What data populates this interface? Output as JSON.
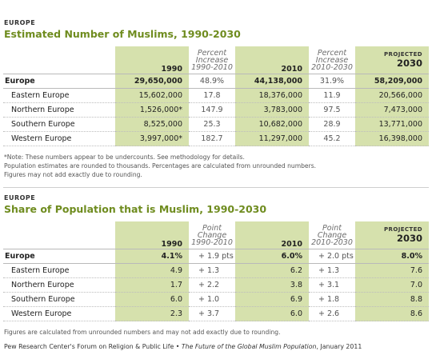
{
  "table1": {
    "label": "EUROPE",
    "title": "Estimated Number of Muslims, 1990-2030",
    "headers": {
      "y1": "1990",
      "c1a": "Percent Increase",
      "c1b": "1990-2010",
      "y2": "2010",
      "c2a": "Percent Increase",
      "c2b": "2010-2030",
      "projected": "PROJECTED",
      "y3": "2030"
    },
    "rows": [
      {
        "region": "Europe",
        "v1990": "29,650,000",
        "p1": "48.9%",
        "v2010": "44,138,000",
        "p2": "31.9%",
        "v2030": "58,209,000"
      },
      {
        "region": "Eastern Europe",
        "v1990": "15,602,000",
        "p1": "17.8",
        "v2010": "18,376,000",
        "p2": "11.9",
        "v2030": "20,566,000"
      },
      {
        "region": "Northern Europe",
        "v1990": "1,526,000*",
        "p1": "147.9",
        "v2010": "3,783,000",
        "p2": "97.5",
        "v2030": "7,473,000"
      },
      {
        "region": "Southern Europe",
        "v1990": "8,525,000",
        "p1": "25.3",
        "v2010": "10,682,000",
        "p2": "28.9",
        "v2030": "13,771,000"
      },
      {
        "region": "Western Europe",
        "v1990": "3,997,000*",
        "p1": "182.7",
        "v2010": "11,297,000",
        "p2": "45.2",
        "v2030": "16,398,000"
      }
    ],
    "notes": [
      "*Note: These numbers appear to be undercounts. See methodology for details.",
      "Population estimates are rounded to thousands. Percentages are calculated from unrounded numbers.",
      "Figures may not add exactly due to rounding."
    ]
  },
  "table2": {
    "label": "EUROPE",
    "title": "Share of Population that is Muslim, 1990-2030",
    "headers": {
      "y1": "1990",
      "c1a": "Point Change",
      "c1b": "1990-2010",
      "y2": "2010",
      "c2a": "Point Change",
      "c2b": "2010-2030",
      "projected": "PROJECTED",
      "y3": "2030"
    },
    "rows": [
      {
        "region": "Europe",
        "v1990": "4.1%",
        "p1": "+ 1.9 pts",
        "v2010": "6.0%",
        "p2": "+ 2.0 pts",
        "v2030": "8.0%"
      },
      {
        "region": "Eastern Europe",
        "v1990": "4.9",
        "p1": "+ 1.3",
        "v2010": "6.2",
        "p2": "+ 1.3",
        "v2030": "7.6"
      },
      {
        "region": "Northern Europe",
        "v1990": "1.7",
        "p1": "+ 2.2",
        "v2010": "3.8",
        "p2": "+ 3.1",
        "v2030": "7.0"
      },
      {
        "region": "Southern Europe",
        "v1990": "6.0",
        "p1": "+ 1.0",
        "v2010": "6.9",
        "p2": "+ 1.8",
        "v2030": "8.8"
      },
      {
        "region": "Western Europe",
        "v1990": "2.3",
        "p1": "+ 3.7",
        "v2010": "6.0",
        "p2": "+ 2.6",
        "v2030": "8.6"
      }
    ],
    "note": "Figures are calculated from unrounded numbers and may not add exactly due to rounding."
  },
  "source": {
    "prefix": "Pew Research Center's Forum on Religion & Public Life • ",
    "report": "The Future of the Global Muslim Population",
    "suffix": ", January 2011"
  }
}
